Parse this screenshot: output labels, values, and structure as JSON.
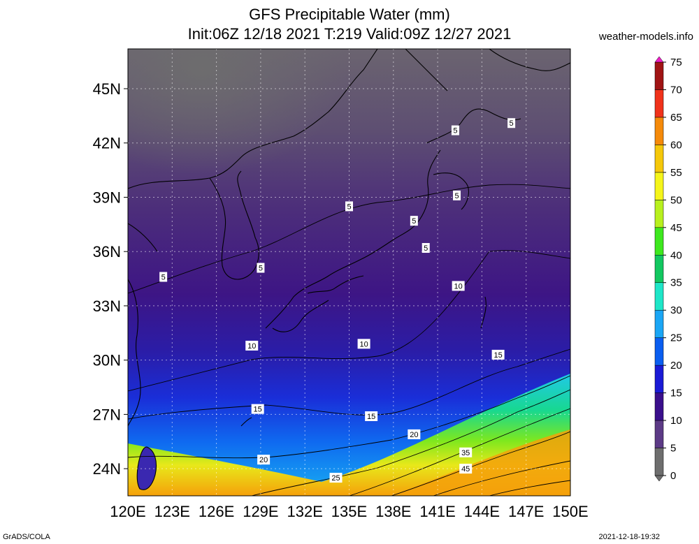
{
  "title": {
    "line1": "GFS Precipitable Water (mm)",
    "line2": "Init:06Z 12/18 2021 T:219 Valid:09Z 12/27 2021"
  },
  "site_label": "weather-models.info",
  "footer": {
    "left": "GrADS/COLA",
    "right": "2021-12-18-19:32"
  },
  "map": {
    "lon_labels": [
      "120E",
      "123E",
      "126E",
      "129E",
      "132E",
      "135E",
      "138E",
      "141E",
      "144E",
      "147E",
      "150E"
    ],
    "lat_labels": [
      "24N",
      "27N",
      "30N",
      "33N",
      "36N",
      "39N",
      "42N",
      "45N"
    ],
    "lon_range": [
      120,
      150
    ],
    "lat_range": [
      22.5,
      47.2
    ],
    "contour_labels": [
      {
        "text": "5",
        "lon": 135.0,
        "lat": 38.5
      },
      {
        "text": "5",
        "lon": 142.2,
        "lat": 42.7
      },
      {
        "text": "5",
        "lon": 146.0,
        "lat": 43.1
      },
      {
        "text": "5",
        "lon": 142.3,
        "lat": 39.1
      },
      {
        "text": "5",
        "lon": 139.4,
        "lat": 37.7
      },
      {
        "text": "5",
        "lon": 140.2,
        "lat": 36.2
      },
      {
        "text": "5",
        "lon": 129.0,
        "lat": 35.1
      },
      {
        "text": "5",
        "lon": 122.4,
        "lat": 34.6
      },
      {
        "text": "10",
        "lon": 128.4,
        "lat": 30.8
      },
      {
        "text": "10",
        "lon": 136.0,
        "lat": 30.9
      },
      {
        "text": "10",
        "lon": 142.4,
        "lat": 34.1
      },
      {
        "text": "15",
        "lon": 145.1,
        "lat": 30.3
      },
      {
        "text": "15",
        "lon": 128.8,
        "lat": 27.3
      },
      {
        "text": "15",
        "lon": 136.5,
        "lat": 26.9
      },
      {
        "text": "20",
        "lon": 139.4,
        "lat": 25.9
      },
      {
        "text": "20",
        "lon": 129.2,
        "lat": 24.5
      },
      {
        "text": "25",
        "lon": 134.1,
        "lat": 23.5
      },
      {
        "text": "35",
        "lon": 142.9,
        "lat": 24.9
      },
      {
        "text": "45",
        "lon": 142.9,
        "lat": 24.0
      }
    ]
  },
  "colorbar": {
    "labels": [
      "0",
      "5",
      "10",
      "15",
      "20",
      "25",
      "30",
      "35",
      "40",
      "45",
      "50",
      "55",
      "60",
      "65",
      "70",
      "75"
    ],
    "colors": [
      "#6e6e6e",
      "#5c3a86",
      "#3a0f8c",
      "#1a1ad6",
      "#0a5ef0",
      "#1aa6f5",
      "#1ee6c8",
      "#12c860",
      "#3ee81e",
      "#b8f01e",
      "#f5f51a",
      "#f5c80a",
      "#f58a0a",
      "#f0321a",
      "#a01414",
      "#f01ec8"
    ]
  }
}
